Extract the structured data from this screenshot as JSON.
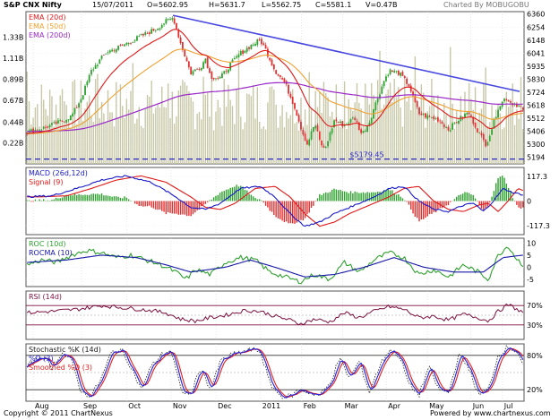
{
  "header": {
    "symbol": "S&P CNX Nifty",
    "date": "15/07/2011",
    "open": "O=5602.95",
    "high": "H=5631.7",
    "low": "L=5562.75",
    "close": "C=5581.1",
    "volume": "V=0.47B",
    "charted_by": "Charted By MOBUGOBU"
  },
  "footer": {
    "copyright": "Copyright © 2011 ChartNexus",
    "powered_by": "Powered by www.chartnexus.com"
  },
  "colors": {
    "up": "#2ea02e",
    "down": "#e03030",
    "ema20": "#e01818",
    "ema50": "#f0a030",
    "ema200": "#9a28c8",
    "trendline": "#4848e0",
    "support": "#2828c8",
    "volume": "#c8c8a8",
    "macd": "#1818c8",
    "signal": "#e01818",
    "roc": "#2ea02e",
    "rocma": "#1818a8",
    "rsi": "#7a1040",
    "stoch_k": "#202020",
    "stoch_d": "#2020e0",
    "stoch_sd": "#e02020"
  },
  "chart_data": [
    {
      "type": "candlestick",
      "panel": "price",
      "title": "S&P CNX Nifty",
      "legend": [
        {
          "name": "EMA (20d)",
          "color": "#e01818"
        },
        {
          "name": "EMA (50d)",
          "color": "#f0a030"
        },
        {
          "name": "EMA (200d)",
          "color": "#9a28c8"
        }
      ],
      "x_tick_labels": [
        "Aug",
        "Sep",
        "Oct",
        "Nov",
        "Dec",
        "2011",
        "Feb",
        "Mar",
        "Apr",
        "May",
        "Jun",
        "Jul"
      ],
      "x_tick_pos": [
        0.0,
        0.1,
        0.193,
        0.285,
        0.378,
        0.47,
        0.555,
        0.64,
        0.73,
        0.815,
        0.905,
        0.97
      ],
      "y_tick_labels": [
        "6360",
        "6254",
        "6148",
        "6041",
        "5935",
        "5830",
        "5724",
        "5618",
        "5512",
        "5406",
        "5300",
        "5194"
      ],
      "y_range": [
        5140,
        6380
      ],
      "volume_tick_labels": [
        "1.33B",
        "1.11B",
        "0.89B",
        "0.67B",
        "0.44B",
        "0.22B"
      ],
      "volume_range": [
        0,
        1.6
      ],
      "support_label": "5179.45",
      "support_value": 5179.45,
      "close_anchors": [
        [
          0,
          5400
        ],
        [
          0.03,
          5430
        ],
        [
          0.06,
          5470
        ],
        [
          0.09,
          5530
        ],
        [
          0.11,
          5680
        ],
        [
          0.13,
          5900
        ],
        [
          0.16,
          6050
        ],
        [
          0.18,
          6080
        ],
        [
          0.2,
          6120
        ],
        [
          0.22,
          6160
        ],
        [
          0.24,
          6200
        ],
        [
          0.26,
          6240
        ],
        [
          0.28,
          6300
        ],
        [
          0.295,
          6330
        ],
        [
          0.31,
          6120
        ],
        [
          0.32,
          6000
        ],
        [
          0.33,
          5880
        ],
        [
          0.35,
          5930
        ],
        [
          0.36,
          6000
        ],
        [
          0.37,
          5850
        ],
        [
          0.39,
          5840
        ],
        [
          0.41,
          5950
        ],
        [
          0.43,
          6040
        ],
        [
          0.45,
          6100
        ],
        [
          0.47,
          6150
        ],
        [
          0.48,
          6080
        ],
        [
          0.5,
          5900
        ],
        [
          0.52,
          5800
        ],
        [
          0.54,
          5600
        ],
        [
          0.555,
          5400
        ],
        [
          0.565,
          5300
        ],
        [
          0.58,
          5470
        ],
        [
          0.59,
          5330
        ],
        [
          0.6,
          5250
        ],
        [
          0.62,
          5500
        ],
        [
          0.64,
          5450
        ],
        [
          0.66,
          5520
        ],
        [
          0.675,
          5380
        ],
        [
          0.69,
          5480
        ],
        [
          0.7,
          5600
        ],
        [
          0.72,
          5820
        ],
        [
          0.73,
          5900
        ],
        [
          0.75,
          5880
        ],
        [
          0.77,
          5780
        ],
        [
          0.79,
          5550
        ],
        [
          0.81,
          5520
        ],
        [
          0.83,
          5500
        ],
        [
          0.85,
          5420
        ],
        [
          0.87,
          5500
        ],
        [
          0.89,
          5560
        ],
        [
          0.9,
          5480
        ],
        [
          0.91,
          5400
        ],
        [
          0.925,
          5300
        ],
        [
          0.935,
          5400
        ],
        [
          0.95,
          5600
        ],
        [
          0.965,
          5680
        ],
        [
          0.975,
          5640
        ],
        [
          0.99,
          5620
        ],
        [
          1.0,
          5581
        ]
      ],
      "last_close": 5581.1
    },
    {
      "type": "line",
      "panel": "macd",
      "legend": [
        {
          "name": "MACD (26d,12d)",
          "color": "#1818c8"
        },
        {
          "name": "Signal (9)",
          "color": "#e01818"
        }
      ],
      "y_tick_labels": [
        "117.3",
        "0",
        "-117.3"
      ],
      "y_range": [
        -160,
        160
      ],
      "macd_anchors": [
        [
          0,
          20
        ],
        [
          0.05,
          25
        ],
        [
          0.1,
          60
        ],
        [
          0.15,
          100
        ],
        [
          0.2,
          120
        ],
        [
          0.25,
          90
        ],
        [
          0.3,
          20
        ],
        [
          0.33,
          -30
        ],
        [
          0.36,
          -40
        ],
        [
          0.39,
          -10
        ],
        [
          0.43,
          60
        ],
        [
          0.47,
          70
        ],
        [
          0.5,
          20
        ],
        [
          0.53,
          -60
        ],
        [
          0.56,
          -120
        ],
        [
          0.59,
          -100
        ],
        [
          0.62,
          -60
        ],
        [
          0.66,
          -20
        ],
        [
          0.7,
          20
        ],
        [
          0.73,
          60
        ],
        [
          0.76,
          70
        ],
        [
          0.79,
          0
        ],
        [
          0.82,
          -40
        ],
        [
          0.85,
          -50
        ],
        [
          0.88,
          -20
        ],
        [
          0.9,
          -10
        ],
        [
          0.92,
          -50
        ],
        [
          0.94,
          0
        ],
        [
          0.96,
          60
        ],
        [
          0.98,
          40
        ],
        [
          1.0,
          30
        ]
      ],
      "signal_lag": 0.03
    },
    {
      "type": "line",
      "panel": "roc",
      "legend": [
        {
          "name": "ROC (10d)",
          "color": "#2ea02e"
        },
        {
          "name": "ROCMA (10)",
          "color": "#1818a8"
        }
      ],
      "y_tick_labels": [
        "10",
        "5",
        "0",
        "-5"
      ],
      "y_range": [
        -8,
        12
      ],
      "roc_anchors": [
        [
          0,
          1
        ],
        [
          0.03,
          3
        ],
        [
          0.06,
          2
        ],
        [
          0.09,
          5
        ],
        [
          0.12,
          7
        ],
        [
          0.15,
          6
        ],
        [
          0.18,
          4
        ],
        [
          0.21,
          5
        ],
        [
          0.24,
          3
        ],
        [
          0.27,
          1
        ],
        [
          0.3,
          -2
        ],
        [
          0.32,
          -5
        ],
        [
          0.34,
          -1
        ],
        [
          0.37,
          -3
        ],
        [
          0.4,
          2
        ],
        [
          0.43,
          4
        ],
        [
          0.46,
          3
        ],
        [
          0.49,
          -2
        ],
        [
          0.52,
          -4
        ],
        [
          0.55,
          -6
        ],
        [
          0.58,
          -3
        ],
        [
          0.61,
          -5
        ],
        [
          0.64,
          2
        ],
        [
          0.67,
          -2
        ],
        [
          0.7,
          3
        ],
        [
          0.73,
          6
        ],
        [
          0.76,
          4
        ],
        [
          0.79,
          -3
        ],
        [
          0.82,
          -1
        ],
        [
          0.85,
          -4
        ],
        [
          0.88,
          1
        ],
        [
          0.91,
          -2
        ],
        [
          0.93,
          -5
        ],
        [
          0.95,
          5
        ],
        [
          0.97,
          9
        ],
        [
          0.985,
          4
        ],
        [
          1.0,
          1
        ]
      ],
      "rocma_anchors": [
        [
          0,
          2
        ],
        [
          0.08,
          3
        ],
        [
          0.15,
          5
        ],
        [
          0.22,
          4
        ],
        [
          0.28,
          1
        ],
        [
          0.33,
          -2
        ],
        [
          0.4,
          0
        ],
        [
          0.45,
          3
        ],
        [
          0.5,
          0
        ],
        [
          0.56,
          -4
        ],
        [
          0.62,
          -3
        ],
        [
          0.68,
          0
        ],
        [
          0.74,
          4
        ],
        [
          0.8,
          0
        ],
        [
          0.86,
          -2
        ],
        [
          0.92,
          -2
        ],
        [
          0.96,
          4
        ],
        [
          1.0,
          5
        ]
      ]
    },
    {
      "type": "line",
      "panel": "rsi",
      "legend": [
        {
          "name": "RSI (14d)",
          "color": "#7a1040"
        }
      ],
      "y_tick_labels": [
        "70%",
        "30%"
      ],
      "y_range": [
        0,
        100
      ],
      "rsi_anchors": [
        [
          0,
          55
        ],
        [
          0.05,
          58
        ],
        [
          0.1,
          62
        ],
        [
          0.15,
          70
        ],
        [
          0.2,
          65
        ],
        [
          0.25,
          60
        ],
        [
          0.28,
          55
        ],
        [
          0.31,
          42
        ],
        [
          0.34,
          38
        ],
        [
          0.37,
          45
        ],
        [
          0.4,
          50
        ],
        [
          0.44,
          60
        ],
        [
          0.47,
          58
        ],
        [
          0.5,
          48
        ],
        [
          0.53,
          40
        ],
        [
          0.55,
          32
        ],
        [
          0.58,
          42
        ],
        [
          0.61,
          36
        ],
        [
          0.64,
          55
        ],
        [
          0.67,
          45
        ],
        [
          0.7,
          58
        ],
        [
          0.73,
          68
        ],
        [
          0.76,
          62
        ],
        [
          0.79,
          45
        ],
        [
          0.82,
          48
        ],
        [
          0.85,
          40
        ],
        [
          0.88,
          52
        ],
        [
          0.91,
          45
        ],
        [
          0.93,
          38
        ],
        [
          0.95,
          58
        ],
        [
          0.97,
          72
        ],
        [
          0.985,
          64
        ],
        [
          1.0,
          55
        ]
      ]
    },
    {
      "type": "line",
      "panel": "stochastic",
      "legend": [
        {
          "name": "Stochastic %K (14d)",
          "color": "#202020"
        },
        {
          "name": "%D (3)",
          "color": "#2020e0"
        },
        {
          "name": "Smoothed %D (3)",
          "color": "#e02020"
        }
      ],
      "y_tick_labels": [
        "80%",
        "20%"
      ],
      "y_range": [
        0,
        100
      ],
      "k_anchors": [
        [
          0,
          60
        ],
        [
          0.03,
          80
        ],
        [
          0.05,
          60
        ],
        [
          0.07,
          85
        ],
        [
          0.09,
          70
        ],
        [
          0.11,
          15
        ],
        [
          0.13,
          10
        ],
        [
          0.15,
          40
        ],
        [
          0.17,
          85
        ],
        [
          0.19,
          90
        ],
        [
          0.21,
          60
        ],
        [
          0.23,
          20
        ],
        [
          0.25,
          60
        ],
        [
          0.27,
          80
        ],
        [
          0.29,
          90
        ],
        [
          0.31,
          20
        ],
        [
          0.33,
          10
        ],
        [
          0.35,
          60
        ],
        [
          0.37,
          20
        ],
        [
          0.39,
          70
        ],
        [
          0.41,
          80
        ],
        [
          0.43,
          85
        ],
        [
          0.45,
          90
        ],
        [
          0.47,
          88
        ],
        [
          0.49,
          30
        ],
        [
          0.51,
          10
        ],
        [
          0.53,
          8
        ],
        [
          0.55,
          20
        ],
        [
          0.57,
          15
        ],
        [
          0.59,
          10
        ],
        [
          0.61,
          30
        ],
        [
          0.63,
          75
        ],
        [
          0.65,
          40
        ],
        [
          0.67,
          70
        ],
        [
          0.69,
          15
        ],
        [
          0.71,
          60
        ],
        [
          0.73,
          90
        ],
        [
          0.75,
          80
        ],
        [
          0.77,
          30
        ],
        [
          0.79,
          10
        ],
        [
          0.81,
          60
        ],
        [
          0.83,
          20
        ],
        [
          0.85,
          15
        ],
        [
          0.87,
          80
        ],
        [
          0.89,
          60
        ],
        [
          0.91,
          10
        ],
        [
          0.93,
          20
        ],
        [
          0.95,
          80
        ],
        [
          0.97,
          95
        ],
        [
          0.99,
          85
        ],
        [
          1.0,
          60
        ]
      ]
    }
  ]
}
